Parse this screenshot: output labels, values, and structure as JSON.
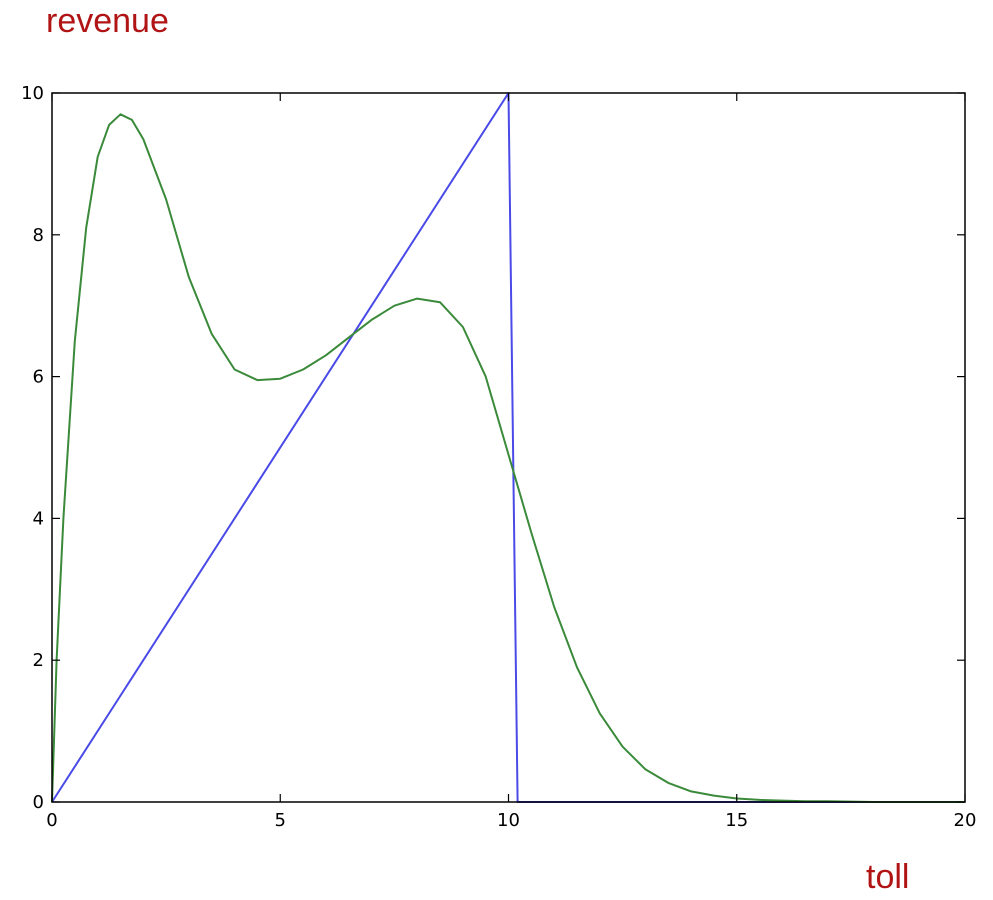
{
  "chart_data": {
    "type": "line",
    "xlabel": "toll",
    "ylabel": "revenue",
    "xlim": [
      0,
      20
    ],
    "ylim": [
      0,
      10
    ],
    "xticks": [
      0,
      5,
      10,
      15,
      20
    ],
    "yticks": [
      0,
      2,
      4,
      6,
      8,
      10
    ],
    "grid": false,
    "series": [
      {
        "color": "#4a4ae8",
        "x": [
          0,
          10,
          10.2,
          20
        ],
        "y": [
          0,
          10,
          0,
          0
        ]
      },
      {
        "color": "#3a8a3a",
        "x": [
          0,
          0.1,
          0.25,
          0.5,
          0.75,
          1.0,
          1.25,
          1.5,
          1.75,
          2.0,
          2.5,
          3.0,
          3.5,
          4.0,
          4.5,
          5.0,
          5.5,
          6.0,
          6.5,
          7.0,
          7.5,
          8.0,
          8.5,
          9.0,
          9.5,
          10.0,
          10.5,
          11.0,
          11.5,
          12.0,
          12.5,
          13.0,
          13.5,
          14.0,
          14.5,
          15.0,
          15.5,
          16.0,
          16.5,
          17.0,
          18.0,
          19.0,
          20.0
        ],
        "y": [
          0,
          2.0,
          4.0,
          6.5,
          8.1,
          9.1,
          9.55,
          9.7,
          9.62,
          9.35,
          8.5,
          7.4,
          6.6,
          6.1,
          5.95,
          5.97,
          6.1,
          6.3,
          6.55,
          6.8,
          7.0,
          7.1,
          7.05,
          6.7,
          6.0,
          4.9,
          3.8,
          2.75,
          1.9,
          1.25,
          0.78,
          0.46,
          0.27,
          0.15,
          0.09,
          0.05,
          0.03,
          0.02,
          0.01,
          0.01,
          0.0,
          0.0,
          0.0
        ]
      }
    ]
  }
}
